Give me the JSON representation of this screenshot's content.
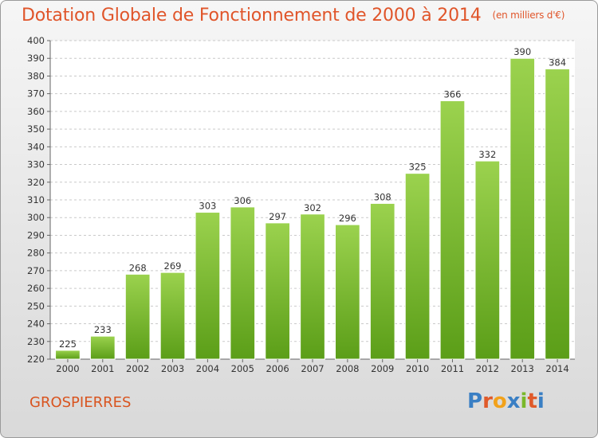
{
  "title": "Dotation Globale de Fonctionnement de 2000 à 2014",
  "subtitle": "(en milliers d'€)",
  "commune": "GROSPIERRES",
  "logo": {
    "letters": [
      "P",
      "r",
      "o",
      "x",
      "i",
      "t",
      "i"
    ],
    "colors": [
      "#3a7fc4",
      "#e05a2a",
      "#f2a21b",
      "#3a7fc4",
      "#79b82a",
      "#e05a2a",
      "#3a7fc4"
    ]
  },
  "colors": {
    "bar_top": "#9bd24e",
    "bar_bottom": "#5b9e18",
    "grid": "#c9c9c9",
    "accent": "#e0552a"
  },
  "chart_data": {
    "type": "bar",
    "title": "Dotation Globale de Fonctionnement de 2000 à 2014",
    "subtitle": "(en milliers d'€)",
    "categories": [
      "2000",
      "2001",
      "2002",
      "2003",
      "2004",
      "2005",
      "2006",
      "2007",
      "2008",
      "2009",
      "2010",
      "2011",
      "2012",
      "2013",
      "2014"
    ],
    "values": [
      225,
      233,
      268,
      269,
      303,
      306,
      297,
      302,
      296,
      308,
      325,
      366,
      332,
      390,
      384
    ],
    "ylim": [
      220,
      400
    ],
    "ytick_step": 10,
    "grid": true,
    "xlabel": "",
    "ylabel": ""
  }
}
